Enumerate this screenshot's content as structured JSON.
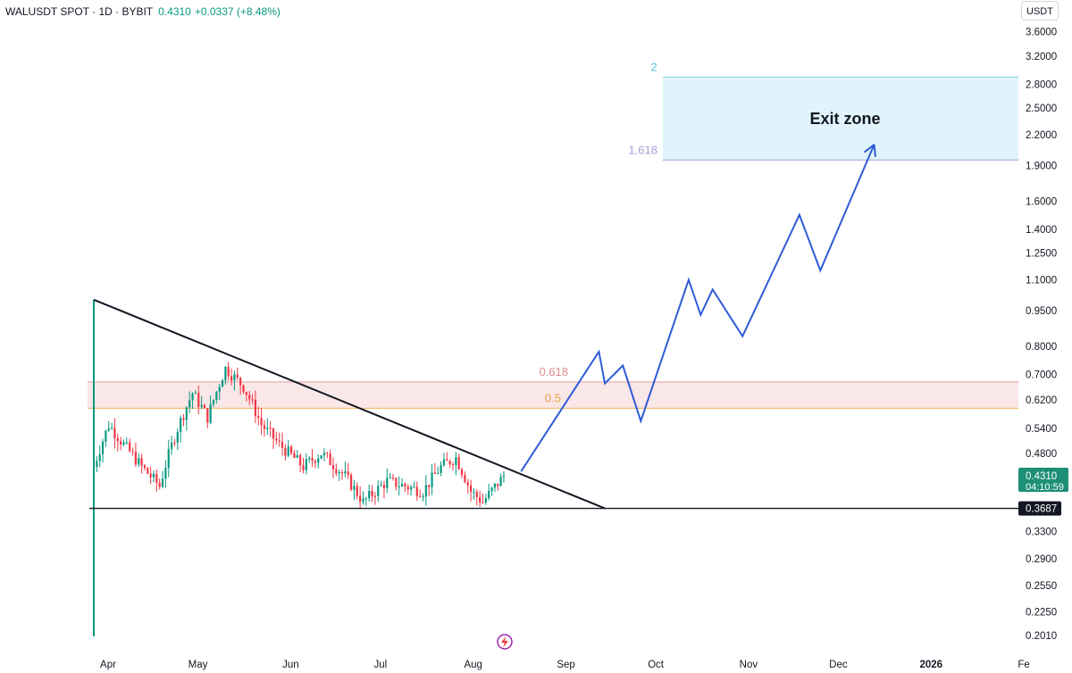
{
  "header": {
    "symbol": "WALUSDT SPOT · 1D · BYBIT",
    "price": "0.4310",
    "change": "+0.0337 (+8.48%)"
  },
  "currency": "USDT",
  "price_tag": {
    "price": "0.4310",
    "countdown": "04:10:59"
  },
  "support_tag": "0.3687",
  "chart_data": {
    "type": "candlestick",
    "y_scale": "log",
    "ylim": [
      0.2,
      3.8
    ],
    "y_ticks": [
      "3.6000",
      "3.2000",
      "2.8000",
      "2.5000",
      "2.2000",
      "1.9000",
      "1.6000",
      "1.4000",
      "1.2500",
      "1.1000",
      "0.9500",
      "0.8000",
      "0.7000",
      "0.6200",
      "0.5400",
      "0.4800",
      "0.4310",
      "0.3687",
      "0.3300",
      "0.2900",
      "0.2550",
      "0.2250",
      "0.2010"
    ],
    "x_ticks": [
      "Apr",
      "May",
      "Jun",
      "Jul",
      "Aug",
      "Sep",
      "Oct",
      "Nov",
      "Dec",
      "2026",
      "Fe"
    ],
    "annotations": {
      "exit_zone_label": "Exit zone",
      "fib_labels": [
        "2",
        "1.618",
        "0.618",
        "0.5"
      ]
    },
    "resistance_zone": [
      0.595,
      0.675
    ],
    "target_zone": [
      1.95,
      2.9
    ],
    "support_level": 0.3687,
    "projection": [
      [
        "Aug 17",
        0.44
      ],
      [
        "Sep 12",
        0.78
      ],
      [
        "Sep 14",
        0.67
      ],
      [
        "Sep 20",
        0.73
      ],
      [
        "Sep 26",
        0.56
      ],
      [
        "Oct 12",
        1.1
      ],
      [
        "Oct 16",
        0.93
      ],
      [
        "Oct 20",
        1.05
      ],
      [
        "Oct 30",
        0.84
      ],
      [
        "Nov 18",
        1.5
      ],
      [
        "Nov 25",
        1.15
      ],
      [
        "Dec 13",
        2.1
      ]
    ]
  }
}
